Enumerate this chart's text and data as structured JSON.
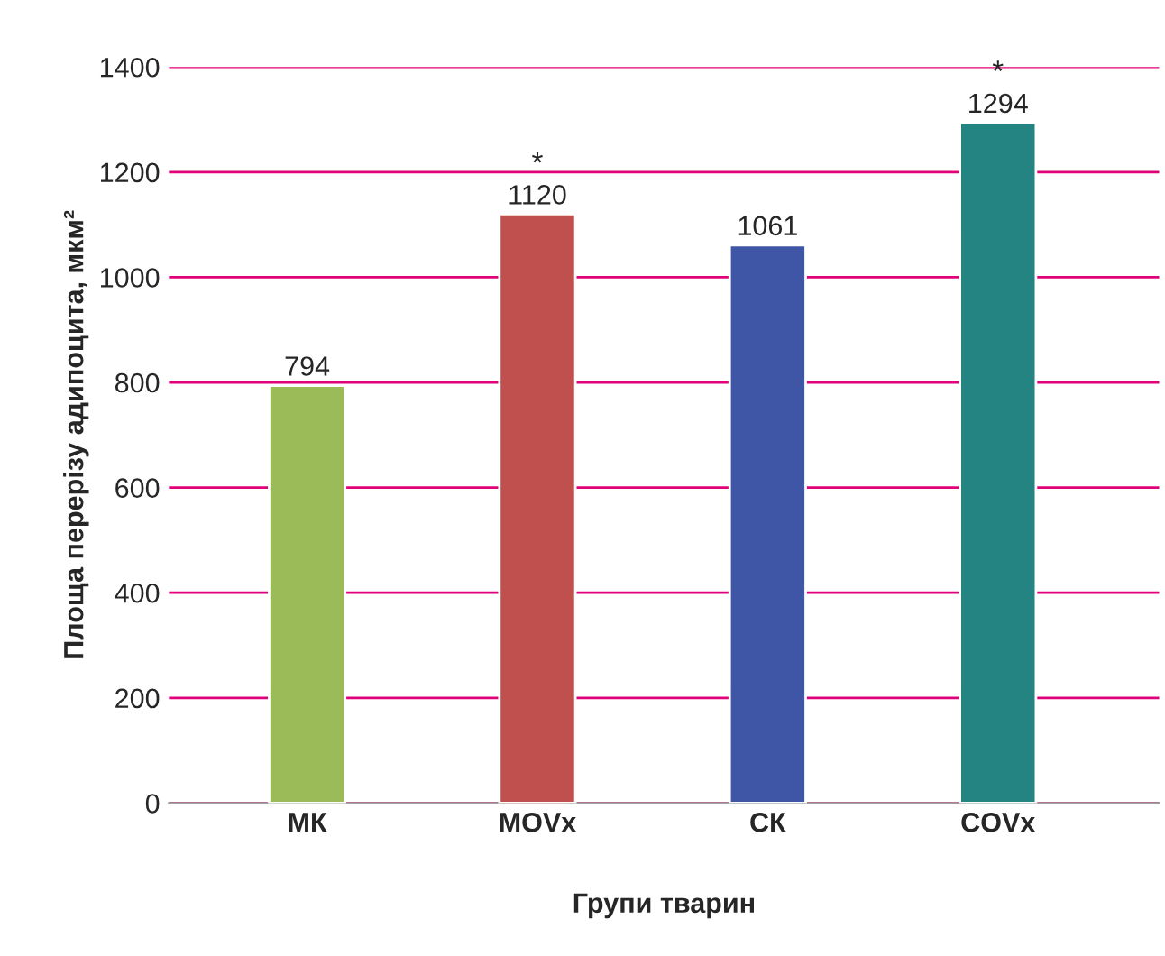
{
  "chart_data": {
    "type": "bar",
    "xlabel": "Групи тварин",
    "ylabel": "Площа перерізу адипоцита, мкм²",
    "categories": [
      "МК",
      "MOVx",
      "СК",
      "COVx"
    ],
    "values": [
      794,
      1120,
      1061,
      1294
    ],
    "colors": [
      "#9bbb59",
      "#c0504d",
      "#3f56a6",
      "#248482"
    ],
    "ylim": [
      0,
      1400
    ],
    "yticks": [
      0,
      200,
      400,
      600,
      800,
      1000,
      1200,
      1400
    ],
    "grid": "y",
    "data_labels": true,
    "annotations": [
      {
        "text": "*",
        "x": "MOVx",
        "y": 1120
      },
      {
        "text": "*",
        "x": "COVx",
        "y": 1294
      }
    ]
  }
}
